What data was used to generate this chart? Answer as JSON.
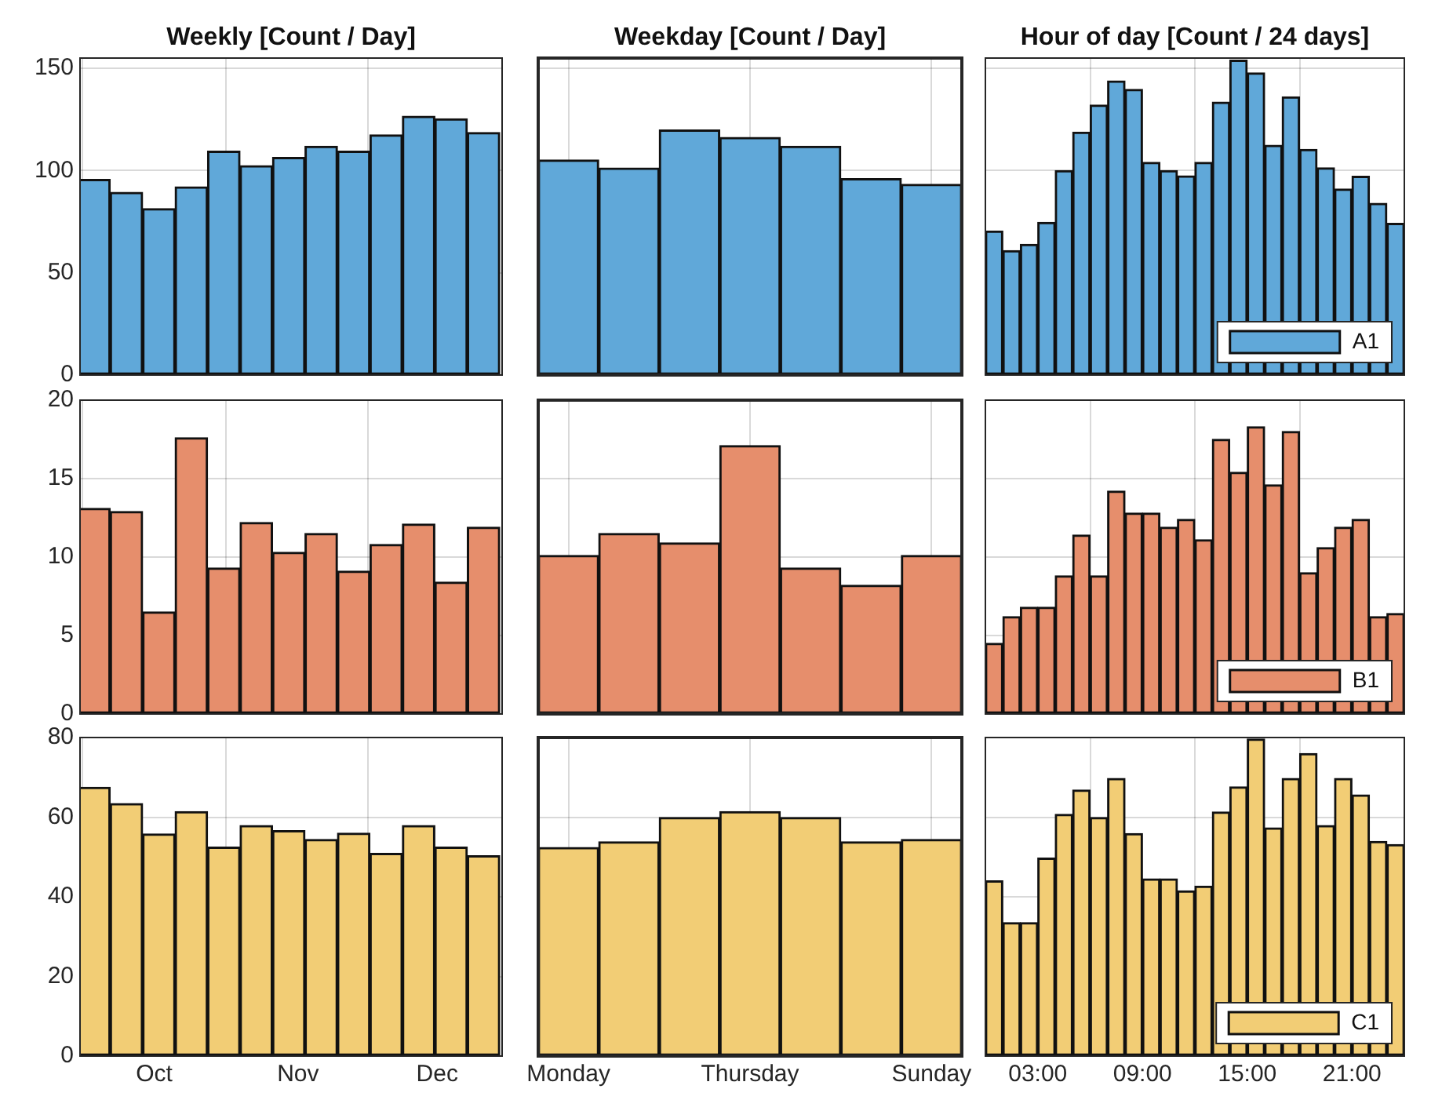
{
  "chart_data": [
    {
      "type": "bar",
      "title": "Weekly [Count / Day]",
      "x": [
        "--09-18",
        "--09-25",
        "--10-02",
        "--10-09",
        "--10-16",
        "--10-23",
        "--10-30",
        "--11-06",
        "--11-13",
        "--11-20",
        "--11-27",
        "--12-04",
        "--12-11"
      ],
      "xlim": [
        "--09-15",
        "--12-15"
      ],
      "xticks": [
        {
          "value": "--10-01",
          "label": null
        },
        {
          "value": "--11-01",
          "label": null
        },
        {
          "value": "--12-01",
          "label": null
        }
      ],
      "values": [
        95.7,
        89.3,
        81.4,
        92,
        109.5,
        102.4,
        106.4,
        111.9,
        109.5,
        117.4,
        126.5,
        125.3,
        118.6
      ],
      "color": "#60a8d9",
      "ylim": [
        0,
        155
      ],
      "yticks": [
        0,
        50,
        100,
        150
      ],
      "grid": true,
      "tick_labels": "y"
    },
    {
      "type": "bar",
      "title": "Weekday [Count / Day]",
      "categories": [
        null,
        null,
        null,
        null,
        null,
        null,
        null
      ],
      "values": [
        105.2,
        101.2,
        119.8,
        116.2,
        111.9,
        96,
        93.3
      ],
      "color": "#60a8d9",
      "ylim": [
        0,
        155
      ],
      "yticks": [
        0,
        50,
        100,
        150
      ],
      "grid": true,
      "tick_labels": false
    },
    {
      "type": "bar",
      "title": "Hour of day [Count / 24 days]",
      "x": [
        0.5,
        1.5,
        2.5,
        3.5,
        4.5,
        5.5,
        6.5,
        7.5,
        8.5,
        9.5,
        10.5,
        11.5,
        12.5,
        13.5,
        14.5,
        15.5,
        16.5,
        17.5,
        18.5,
        19.5,
        20.5,
        21.5,
        22.5,
        23.5
      ],
      "xlim": [
        0,
        24
      ],
      "xticks": [
        {
          "value": 3,
          "label": null
        },
        {
          "value": 9,
          "label": null
        },
        {
          "value": 15,
          "label": null
        },
        {
          "value": 21,
          "label": null
        }
      ],
      "series": [
        {
          "name": "A1",
          "color": "#60a8d9",
          "values": [
            70.4,
            60.8,
            63.9,
            74.7,
            100,
            118.8,
            132,
            143.8,
            139.7,
            104,
            100,
            97.4,
            104,
            133.5,
            154,
            147.7,
            112.4,
            136,
            110.3,
            101.3,
            91,
            97.2,
            84,
            74.2
          ]
        }
      ],
      "ylim": [
        0,
        155
      ],
      "yticks": [
        0,
        50,
        100,
        150
      ],
      "grid": true,
      "legend": "bottom right",
      "tick_labels": false
    },
    {
      "type": "bar",
      "x": [
        "--09-18",
        "--09-25",
        "--10-02",
        "--10-09",
        "--10-16",
        "--10-23",
        "--10-30",
        "--11-06",
        "--11-13",
        "--11-20",
        "--11-27",
        "--12-04",
        "--12-11"
      ],
      "xlim": [
        "--09-15",
        "--12-15"
      ],
      "xticks": [
        {
          "value": "--10-01",
          "label": null
        },
        {
          "value": "--11-01",
          "label": null
        },
        {
          "value": "--12-01",
          "label": null
        }
      ],
      "values": [
        13.1,
        12.9,
        6.5,
        17.6,
        9.3,
        12.2,
        10.3,
        11.5,
        9.1,
        10.8,
        12.1,
        8.4,
        11.9
      ],
      "color": "#e68e6c",
      "ylim": [
        0,
        20
      ],
      "yticks": [
        0,
        5,
        10,
        15,
        20
      ],
      "grid": true,
      "tick_labels": "y"
    },
    {
      "type": "bar",
      "categories": [
        null,
        null,
        null,
        null,
        null,
        null,
        null
      ],
      "values": [
        10.1,
        11.5,
        10.9,
        17.1,
        9.3,
        8.2,
        10.1
      ],
      "color": "#e68e6c",
      "ylim": [
        0,
        20
      ],
      "yticks": [
        0,
        5,
        10,
        15,
        20
      ],
      "grid": true,
      "tick_labels": false
    },
    {
      "type": "bar",
      "x": [
        0.5,
        1.5,
        2.5,
        3.5,
        4.5,
        5.5,
        6.5,
        7.5,
        8.5,
        9.5,
        10.5,
        11.5,
        12.5,
        13.5,
        14.5,
        15.5,
        16.5,
        17.5,
        18.5,
        19.5,
        20.5,
        21.5,
        22.5,
        23.5
      ],
      "xlim": [
        0,
        24
      ],
      "xticks": [
        {
          "value": 3,
          "label": null
        },
        {
          "value": 9,
          "label": null
        },
        {
          "value": 15,
          "label": null
        },
        {
          "value": 21,
          "label": null
        }
      ],
      "series": [
        {
          "name": "B1",
          "color": "#e68e6c",
          "values": [
            4.5,
            6.2,
            6.8,
            6.8,
            8.8,
            11.4,
            8.8,
            14.2,
            12.8,
            12.8,
            11.9,
            12.4,
            11.1,
            17.5,
            15.4,
            18.3,
            14.6,
            18,
            9,
            10.6,
            11.9,
            12.4,
            6.2,
            6.4
          ]
        }
      ],
      "ylim": [
        0,
        20
      ],
      "yticks": [
        0,
        5,
        10,
        15,
        20
      ],
      "grid": true,
      "legend": "bottom right",
      "tick_labels": false
    },
    {
      "type": "bar",
      "x": [
        "--09-18",
        "--09-25",
        "--10-02",
        "--10-09",
        "--10-16",
        "--10-23",
        "--10-30",
        "--11-06",
        "--11-13",
        "--11-20",
        "--11-27",
        "--12-04",
        "--12-11"
      ],
      "xlim": [
        "--09-15",
        "--12-15"
      ],
      "xticks": [
        {
          "value": "--10-01",
          "label": "Oct"
        },
        {
          "value": "--11-01",
          "label": "Nov"
        },
        {
          "value": "--12-01",
          "label": "Dec"
        }
      ],
      "values": [
        67.5,
        63.4,
        55.8,
        61.4,
        52.5,
        57.9,
        56.6,
        54.4,
        56,
        50.9,
        57.9,
        52.5,
        50.3
      ],
      "color": "#f2cd75",
      "ylim": [
        0,
        80
      ],
      "yticks": [
        0,
        20,
        40,
        60,
        80
      ],
      "grid": true
    },
    {
      "type": "bar",
      "categories": [
        "Monday",
        null,
        null,
        "Thursday",
        null,
        null,
        "Sunday"
      ],
      "values": [
        52.4,
        53.8,
        59.9,
        61.4,
        59.9,
        53.8,
        54.4
      ],
      "color": "#f2cd75",
      "ylim": [
        0,
        80
      ],
      "yticks": [
        0,
        20,
        40,
        60,
        80
      ],
      "grid": true,
      "tick_labels": "x"
    },
    {
      "type": "bar",
      "x": [
        0.5,
        1.5,
        2.5,
        3.5,
        4.5,
        5.5,
        6.5,
        7.5,
        8.5,
        9.5,
        10.5,
        11.5,
        12.5,
        13.5,
        14.5,
        15.5,
        16.5,
        17.5,
        18.5,
        19.5,
        20.5,
        21.5,
        22.5,
        23.5
      ],
      "xlim": [
        0,
        24
      ],
      "xticks": [
        {
          "value": 3,
          "label": "03:00"
        },
        {
          "value": 9,
          "label": "09:00"
        },
        {
          "value": 15,
          "label": "15:00"
        },
        {
          "value": 21,
          "label": "21:00"
        }
      ],
      "series": [
        {
          "name": "C1",
          "color": "#f2cd75",
          "values": [
            44,
            33.5,
            33.5,
            49.7,
            60.7,
            66.8,
            59.9,
            69.7,
            55.9,
            44.5,
            44.5,
            41.5,
            42.7,
            61.3,
            67.6,
            79.6,
            57.3,
            69.7,
            76,
            57.9,
            69.7,
            65.6,
            53.9,
            53.1
          ]
        }
      ],
      "ylim": [
        0,
        80
      ],
      "yticks": [
        0,
        20,
        40,
        60,
        80
      ],
      "grid": true,
      "legend": "bottom right",
      "tick_labels": "x"
    }
  ]
}
